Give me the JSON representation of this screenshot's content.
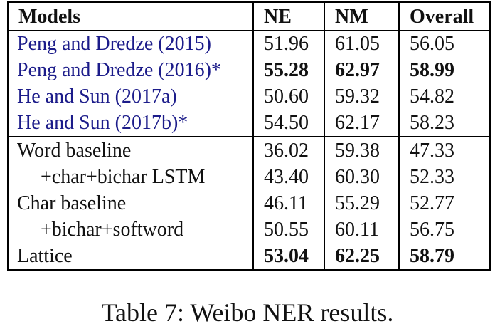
{
  "table": {
    "header": [
      "Models",
      "NE",
      "NM",
      "Overall"
    ],
    "rows": [
      [
        "Peng and Dredze (2015)",
        "51.96",
        "61.05",
        "56.05"
      ],
      [
        "Peng and Dredze (2016)*",
        "55.28",
        "62.97",
        "58.99"
      ],
      [
        "He and Sun (2017a)",
        "50.60",
        "59.32",
        "54.82"
      ],
      [
        "He and Sun (2017b)*",
        "54.50",
        "62.17",
        "58.23"
      ],
      [
        "Word baseline",
        "36.02",
        "59.38",
        "47.33"
      ],
      [
        "+char+bichar LSTM",
        "43.40",
        "60.30",
        "52.33"
      ],
      [
        "Char baseline",
        "46.11",
        "55.29",
        "52.77"
      ],
      [
        "+bichar+softword",
        "50.55",
        "60.11",
        "56.75"
      ],
      [
        "Lattice",
        "53.04",
        "62.25",
        "58.79"
      ]
    ]
  },
  "caption": "Table 7: Weibo NER results."
}
